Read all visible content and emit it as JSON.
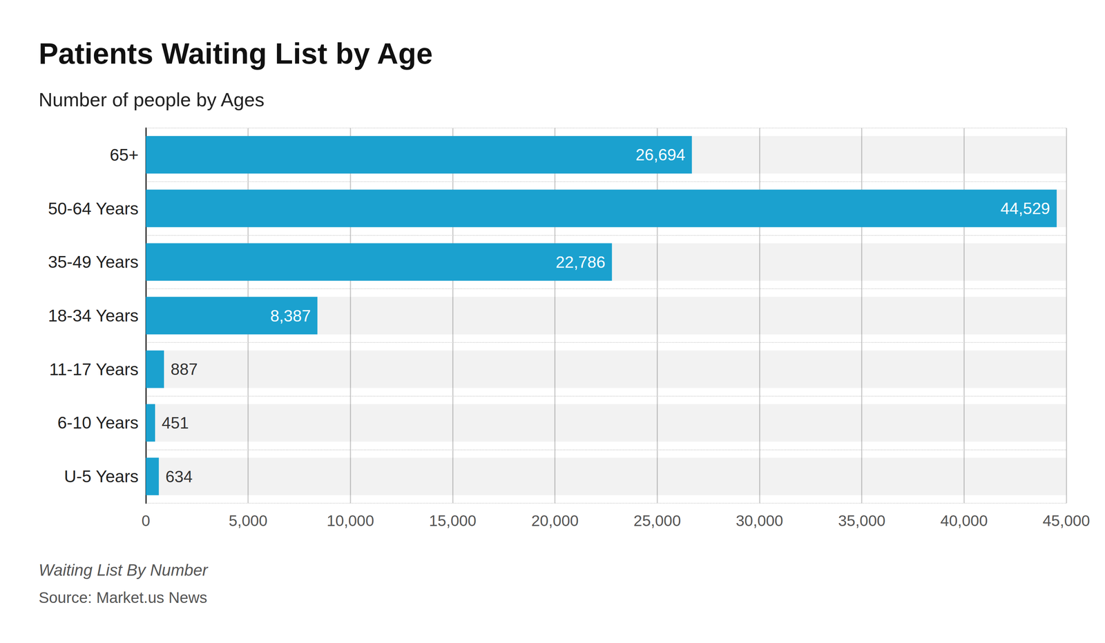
{
  "chart_data": {
    "type": "bar",
    "orientation": "horizontal",
    "title": "Patients Waiting List by Age",
    "subtitle": "Number of people by Ages",
    "caption": "Waiting List By Number",
    "source": "Source: Market.us News",
    "categories": [
      "65+",
      "50-64 Years",
      "35-49 Years",
      "18-34 Years",
      "11-17 Years",
      "6-10 Years",
      "U-5 Years"
    ],
    "values": [
      26694,
      44529,
      22786,
      8387,
      887,
      451,
      634
    ],
    "value_labels": [
      "26,694",
      "44,529",
      "22,786",
      "8,387",
      "887",
      "451",
      "634"
    ],
    "color": "#1ba1cf",
    "xlim": [
      0,
      45000
    ],
    "xticks": [
      0,
      {
        "value": 5000,
        "label": "5,000"
      },
      {
        "value": 10000,
        "label": "10,000"
      },
      {
        "value": 15000,
        "label": "15,000"
      },
      {
        "value": 20000,
        "label": "20,000"
      },
      {
        "value": 25000,
        "label": "25,000"
      },
      {
        "value": 30000,
        "label": "30,000"
      },
      {
        "value": 35000,
        "label": "35,000"
      },
      {
        "value": 40000,
        "label": "40,000"
      },
      {
        "value": 45000,
        "label": "45,000"
      }
    ],
    "grid": true,
    "data_labels": true
  }
}
